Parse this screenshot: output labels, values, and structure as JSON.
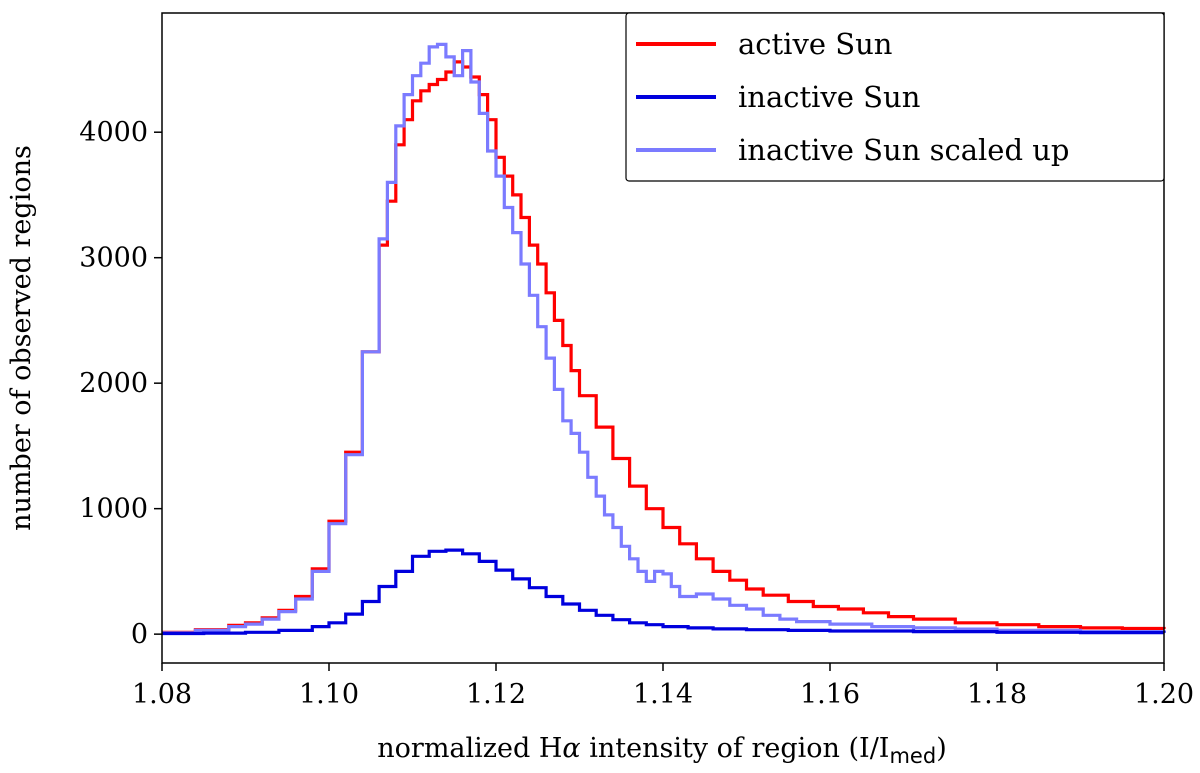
{
  "chart_data": {
    "type": "line",
    "style": "step",
    "xlabel_parts": {
      "prefix": "normalized H",
      "greek": "α",
      "middle": " intensity of region (I/I",
      "sub": "med",
      "suffix": ")"
    },
    "ylabel": "number of observed regions",
    "xlim": [
      1.08,
      1.2
    ],
    "ylim": [
      -230,
      4950
    ],
    "x_ticks": [
      1.08,
      1.1,
      1.12,
      1.14,
      1.16,
      1.18,
      1.2
    ],
    "x_tick_labels": [
      "1.08",
      "1.10",
      "1.12",
      "1.14",
      "1.16",
      "1.18",
      "1.20"
    ],
    "y_ticks": [
      0,
      1000,
      2000,
      3000,
      4000
    ],
    "y_tick_labels": [
      "0",
      "1000",
      "2000",
      "3000",
      "4000"
    ],
    "legend_position": "top-right",
    "series": [
      {
        "name": "active Sun",
        "color": "#ff0000",
        "points": [
          [
            1.08,
            15
          ],
          [
            1.084,
            35
          ],
          [
            1.088,
            70
          ],
          [
            1.09,
            90
          ],
          [
            1.092,
            130
          ],
          [
            1.094,
            190
          ],
          [
            1.096,
            300
          ],
          [
            1.098,
            520
          ],
          [
            1.1,
            900
          ],
          [
            1.102,
            1450
          ],
          [
            1.104,
            2250
          ],
          [
            1.106,
            3100
          ],
          [
            1.107,
            3450
          ],
          [
            1.108,
            3900
          ],
          [
            1.109,
            4100
          ],
          [
            1.11,
            4250
          ],
          [
            1.111,
            4330
          ],
          [
            1.112,
            4380
          ],
          [
            1.113,
            4420
          ],
          [
            1.114,
            4480
          ],
          [
            1.115,
            4560
          ],
          [
            1.116,
            4520
          ],
          [
            1.117,
            4440
          ],
          [
            1.118,
            4300
          ],
          [
            1.119,
            4100
          ],
          [
            1.12,
            3800
          ],
          [
            1.121,
            3650
          ],
          [
            1.122,
            3500
          ],
          [
            1.123,
            3320
          ],
          [
            1.124,
            3100
          ],
          [
            1.125,
            2950
          ],
          [
            1.126,
            2720
          ],
          [
            1.127,
            2500
          ],
          [
            1.128,
            2300
          ],
          [
            1.129,
            2100
          ],
          [
            1.13,
            1900
          ],
          [
            1.132,
            1650
          ],
          [
            1.134,
            1400
          ],
          [
            1.136,
            1180
          ],
          [
            1.138,
            1000
          ],
          [
            1.14,
            850
          ],
          [
            1.142,
            720
          ],
          [
            1.144,
            600
          ],
          [
            1.146,
            500
          ],
          [
            1.148,
            430
          ],
          [
            1.15,
            360
          ],
          [
            1.152,
            310
          ],
          [
            1.155,
            260
          ],
          [
            1.158,
            220
          ],
          [
            1.161,
            200
          ],
          [
            1.164,
            170
          ],
          [
            1.167,
            140
          ],
          [
            1.17,
            120
          ],
          [
            1.175,
            90
          ],
          [
            1.18,
            75
          ],
          [
            1.185,
            60
          ],
          [
            1.19,
            50
          ],
          [
            1.195,
            45
          ],
          [
            1.2,
            40
          ]
        ]
      },
      {
        "name": "inactive Sun",
        "color": "#0000dd",
        "points": [
          [
            1.08,
            5
          ],
          [
            1.085,
            8
          ],
          [
            1.09,
            15
          ],
          [
            1.094,
            30
          ],
          [
            1.098,
            60
          ],
          [
            1.1,
            90
          ],
          [
            1.102,
            160
          ],
          [
            1.104,
            260
          ],
          [
            1.106,
            380
          ],
          [
            1.108,
            500
          ],
          [
            1.11,
            620
          ],
          [
            1.112,
            660
          ],
          [
            1.114,
            670
          ],
          [
            1.116,
            640
          ],
          [
            1.118,
            580
          ],
          [
            1.12,
            510
          ],
          [
            1.122,
            440
          ],
          [
            1.124,
            370
          ],
          [
            1.126,
            300
          ],
          [
            1.128,
            240
          ],
          [
            1.13,
            190
          ],
          [
            1.132,
            150
          ],
          [
            1.134,
            115
          ],
          [
            1.136,
            90
          ],
          [
            1.138,
            75
          ],
          [
            1.14,
            60
          ],
          [
            1.143,
            50
          ],
          [
            1.146,
            42
          ],
          [
            1.15,
            35
          ],
          [
            1.155,
            30
          ],
          [
            1.16,
            25
          ],
          [
            1.17,
            20
          ],
          [
            1.18,
            15
          ],
          [
            1.19,
            12
          ],
          [
            1.2,
            10
          ]
        ]
      },
      {
        "name": "inactive Sun scaled up",
        "color": "#7b7bff",
        "points": [
          [
            1.08,
            10
          ],
          [
            1.084,
            30
          ],
          [
            1.088,
            60
          ],
          [
            1.09,
            80
          ],
          [
            1.092,
            120
          ],
          [
            1.094,
            180
          ],
          [
            1.096,
            280
          ],
          [
            1.098,
            500
          ],
          [
            1.1,
            880
          ],
          [
            1.102,
            1430
          ],
          [
            1.104,
            2250
          ],
          [
            1.106,
            3150
          ],
          [
            1.107,
            3600
          ],
          [
            1.108,
            4050
          ],
          [
            1.109,
            4300
          ],
          [
            1.11,
            4450
          ],
          [
            1.111,
            4550
          ],
          [
            1.112,
            4680
          ],
          [
            1.113,
            4700
          ],
          [
            1.114,
            4600
          ],
          [
            1.115,
            4450
          ],
          [
            1.116,
            4650
          ],
          [
            1.117,
            4400
          ],
          [
            1.118,
            4150
          ],
          [
            1.119,
            3850
          ],
          [
            1.12,
            3650
          ],
          [
            1.121,
            3400
          ],
          [
            1.122,
            3200
          ],
          [
            1.123,
            2950
          ],
          [
            1.124,
            2700
          ],
          [
            1.125,
            2450
          ],
          [
            1.126,
            2200
          ],
          [
            1.127,
            1950
          ],
          [
            1.128,
            1700
          ],
          [
            1.129,
            1600
          ],
          [
            1.13,
            1450
          ],
          [
            1.131,
            1250
          ],
          [
            1.132,
            1100
          ],
          [
            1.133,
            950
          ],
          [
            1.134,
            850
          ],
          [
            1.135,
            700
          ],
          [
            1.136,
            600
          ],
          [
            1.137,
            500
          ],
          [
            1.138,
            420
          ],
          [
            1.139,
            500
          ],
          [
            1.14,
            480
          ],
          [
            1.141,
            380
          ],
          [
            1.142,
            300
          ],
          [
            1.144,
            320
          ],
          [
            1.146,
            280
          ],
          [
            1.148,
            230
          ],
          [
            1.15,
            200
          ],
          [
            1.152,
            150
          ],
          [
            1.154,
            120
          ],
          [
            1.156,
            100
          ],
          [
            1.16,
            80
          ],
          [
            1.165,
            60
          ],
          [
            1.17,
            50
          ],
          [
            1.175,
            40
          ],
          [
            1.18,
            30
          ],
          [
            1.19,
            20
          ],
          [
            1.2,
            15
          ]
        ]
      }
    ]
  }
}
